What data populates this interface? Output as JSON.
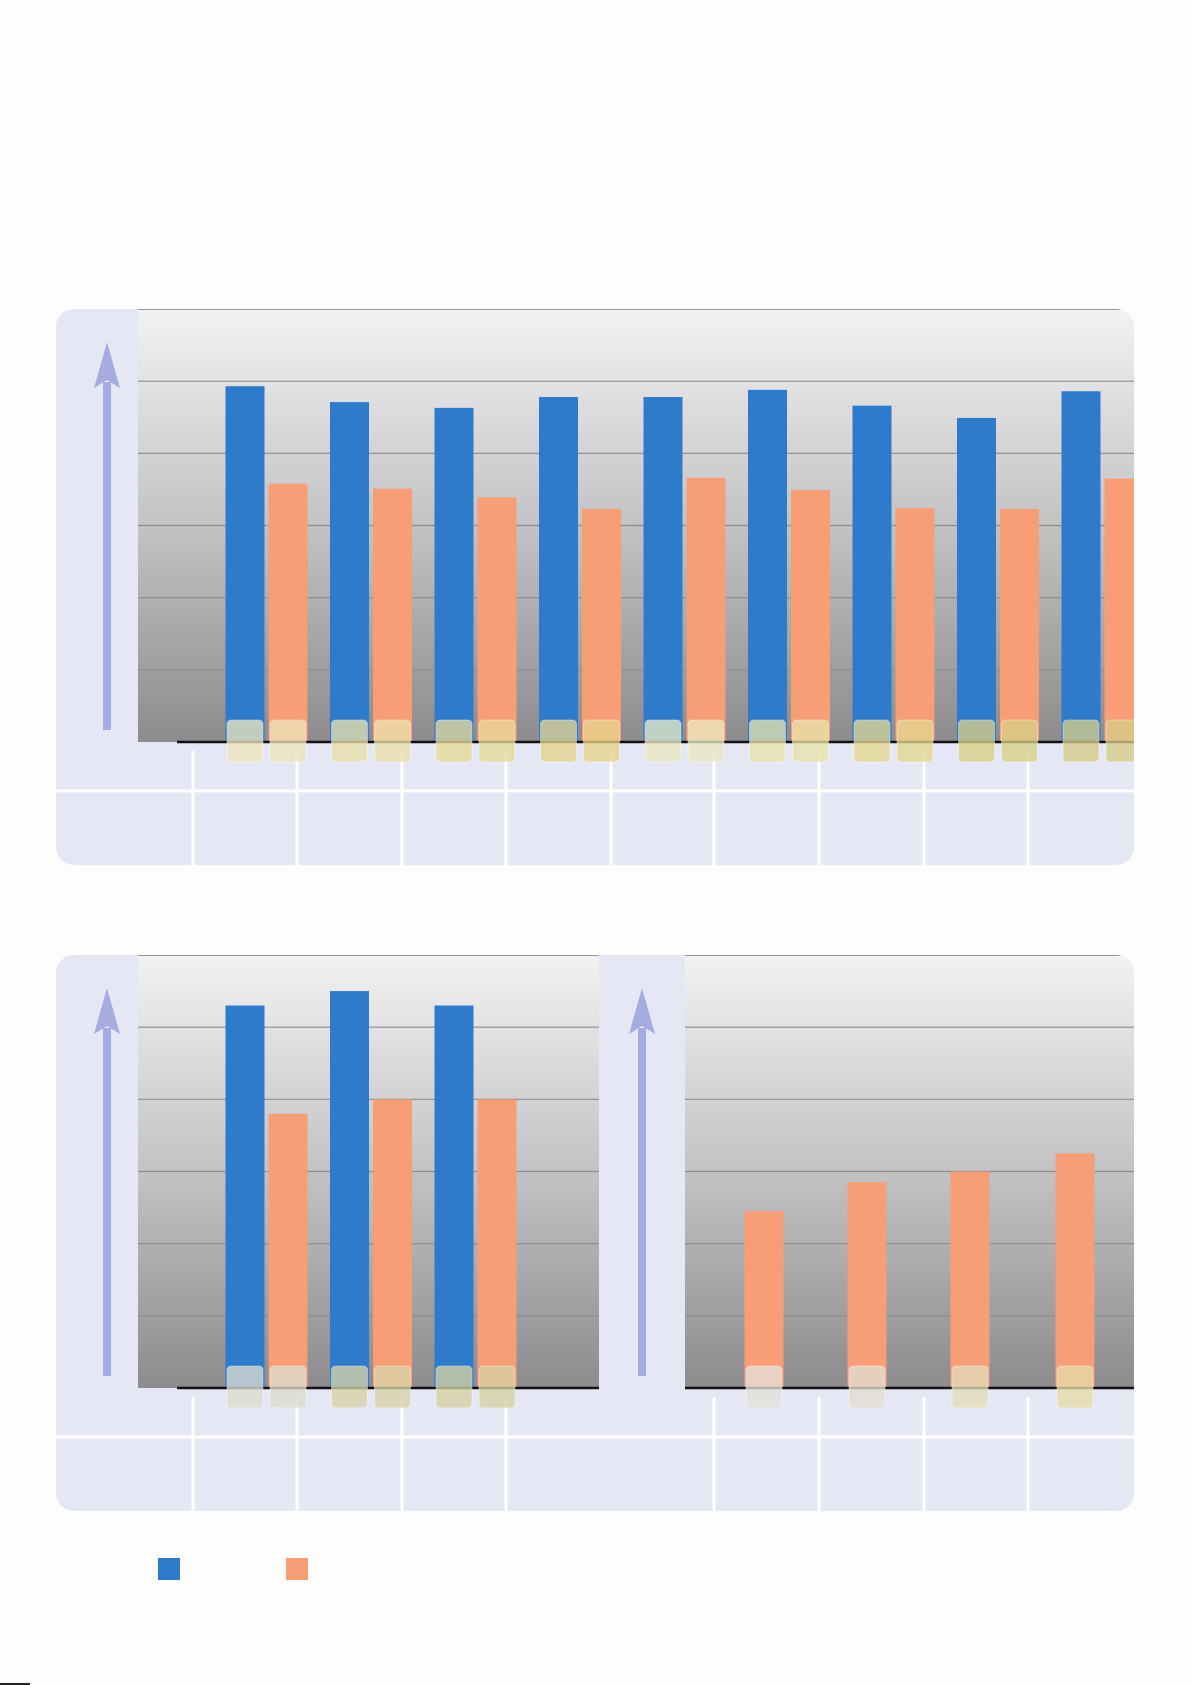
{
  "chart_data": [
    {
      "type": "bar",
      "title": "",
      "xlabel": "",
      "ylabel": "",
      "ylim": [
        0,
        6
      ],
      "grid": true,
      "categories": [
        "",
        "",
        "",
        "",
        "",
        "",
        "",
        "",
        ""
      ],
      "series": [
        {
          "name": "",
          "color": "#2f7bcb",
          "values": [
            4.93,
            4.71,
            4.63,
            4.78,
            4.78,
            4.88,
            4.66,
            4.49,
            4.86
          ]
        },
        {
          "name": "",
          "color": "#f79e76",
          "values": [
            3.58,
            3.51,
            3.39,
            3.23,
            3.66,
            3.49,
            3.24,
            3.23,
            3.65
          ]
        }
      ]
    },
    {
      "type": "bar",
      "title": "",
      "xlabel": "",
      "ylabel": "",
      "ylim": [
        0,
        6
      ],
      "grid": true,
      "categories": [
        "",
        "",
        ""
      ],
      "series": [
        {
          "name": "",
          "color": "#2f7bcb",
          "values": [
            5.3,
            5.5,
            5.3
          ]
        },
        {
          "name": "",
          "color": "#f79e76",
          "values": [
            3.8,
            4.0,
            4.0
          ]
        }
      ]
    },
    {
      "type": "bar",
      "title": "",
      "xlabel": "",
      "ylabel": "",
      "ylim": [
        0,
        6
      ],
      "grid": true,
      "categories": [
        "",
        "",
        "",
        ""
      ],
      "series": [
        {
          "name": "",
          "color": "#f79e76",
          "values": [
            2.45,
            2.85,
            3.0,
            3.25
          ]
        }
      ]
    }
  ],
  "legend": {
    "items": [
      {
        "label": "",
        "color": "#2f7bcb"
      },
      {
        "label": "",
        "color": "#f79e76"
      }
    ]
  }
}
